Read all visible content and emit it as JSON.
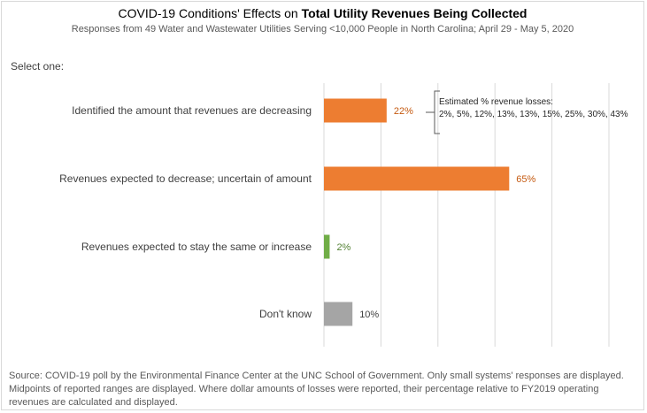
{
  "chart_data": {
    "type": "bar",
    "orientation": "horizontal",
    "title_prefix": "COVID-19 Conditions' Effects on ",
    "title_bold": "Total Utility Revenues Being Collected",
    "subtitle": "Responses from 49 Water and Wastewater Utilities Serving <10,000 People in North Carolina; April 29 - May 5, 2020",
    "prompt": "Select one:",
    "categories": [
      "Identified the amount that revenues are decreasing",
      "Revenues expected to decrease; uncertain of amount",
      "Revenues expected to stay the same or increase",
      "Don't know"
    ],
    "values": [
      22,
      65,
      2,
      10
    ],
    "value_labels": [
      "22%",
      "65%",
      "2%",
      "10%"
    ],
    "colors": [
      "#ed7d31",
      "#ed7d31",
      "#70ad47",
      "#a5a5a5"
    ],
    "label_colors": [
      "#c55a11",
      "#c55a11",
      "#548235",
      "#404040"
    ],
    "xlim": [
      0,
      100
    ],
    "grid": true,
    "annotation": {
      "heading": "Estimated % revenue losses:",
      "text": "2%, 5%, 12%, 13%, 13%, 15%, 25%, 30%, 43%"
    },
    "footnote": "Source: COVID-19 poll by the Environmental Finance Center at the UNC School of Government. Only small systems' responses are displayed. Midpoints of reported ranges are displayed. Where dollar amounts of losses were reported, their percentage relative to FY2019 operating revenues are calculated and displayed."
  }
}
